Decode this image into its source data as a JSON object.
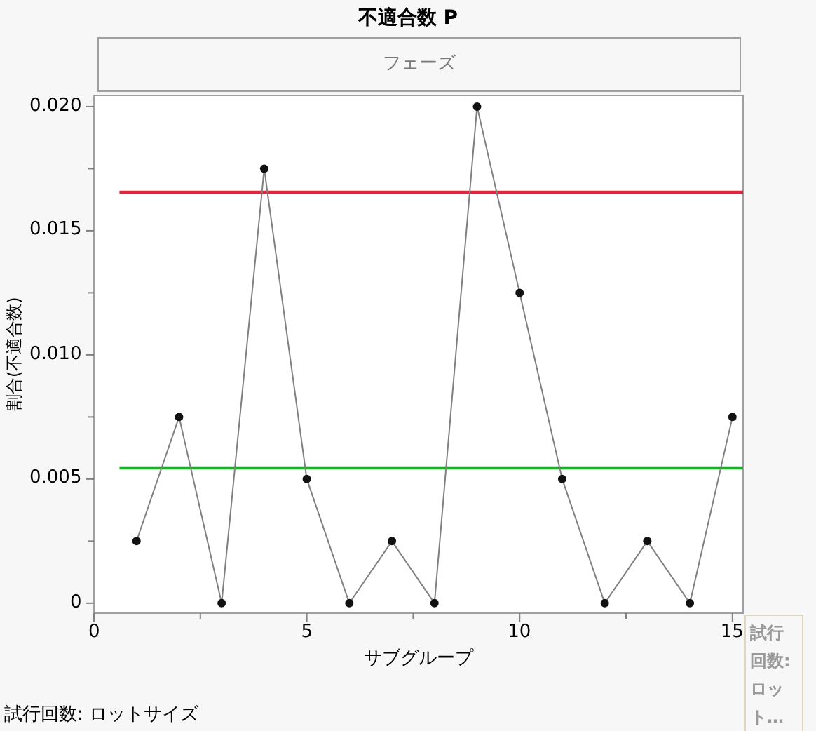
{
  "chart_data": {
    "type": "line",
    "title": "不適合数  P",
    "subtitle": "フェーズ",
    "xlabel": "サブグループ",
    "ylabel": "割合(不適合数)",
    "annotations": [
      "試行回数: ロット…",
      "試行回数: ロットサイズ"
    ],
    "x": [
      1,
      2,
      3,
      4,
      5,
      6,
      7,
      8,
      9,
      10,
      11,
      12,
      13,
      14,
      15
    ],
    "series": [
      {
        "color": "#808080",
        "values": [
          0.0025,
          0.0075,
          0,
          0.0175,
          0.005,
          0,
          0.0025,
          0,
          0.02,
          0.0125,
          0.005,
          0,
          0.0025,
          0,
          0.0075
        ]
      }
    ],
    "marker": "circle",
    "line_style": "solid",
    "xlim": [
      0,
      15.25
    ],
    "ylim": [
      -0.0004,
      0.02045
    ],
    "xticks": [
      0,
      {
        "value": 2.5,
        "label": null
      },
      5,
      {
        "value": 7.5,
        "label": null
      },
      10,
      {
        "value": 12.5,
        "label": null
      },
      15
    ],
    "yticks": [
      0,
      {
        "value": 0.0025,
        "label": null
      },
      0.005,
      {
        "value": 0.0075,
        "label": null
      },
      {
        "value": 0.01,
        "label": "0.010"
      },
      {
        "value": 0.0125,
        "label": null
      },
      0.015,
      {
        "value": 0.0175,
        "label": null
      },
      {
        "value": 0.02,
        "label": "0.020"
      }
    ],
    "ref_lines": [
      {
        "axis": "y",
        "value": 0.01655,
        "label": null,
        "color": "#e8243c"
      },
      {
        "axis": "y",
        "value": 0.00545,
        "label": null,
        "color": "#1ead2a"
      }
    ]
  }
}
